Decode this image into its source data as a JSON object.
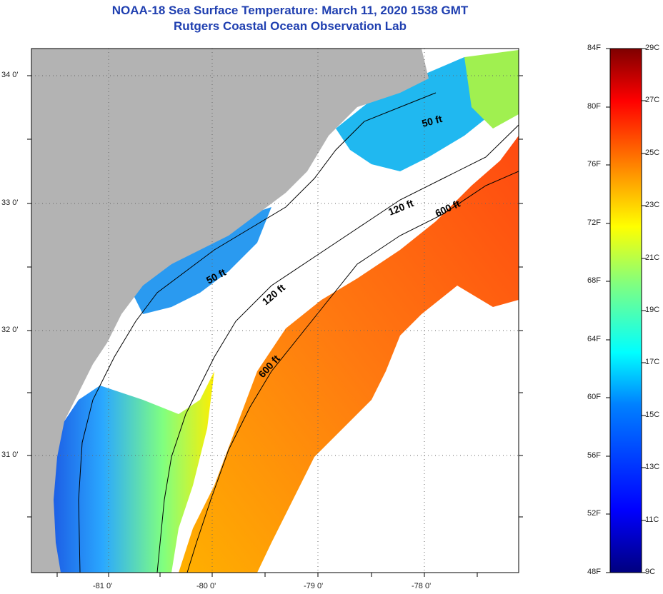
{
  "header": {
    "title": "NOAA-18 Sea Surface Temperature:  March 11, 2020 1538 GMT",
    "subtitle": "Rutgers Coastal Ocean Observation Lab"
  },
  "map": {
    "lat_labels": [
      "34 0'",
      "33 0'",
      "32 0'",
      "31 0'"
    ],
    "lon_labels": [
      "-81 0'",
      "-80 0'",
      "-79 0'",
      "-78 0'"
    ],
    "land_color": "#b3b3b3",
    "cloud_color": "#ffffff",
    "isobaths": [
      {
        "label": "50 ft"
      },
      {
        "label": "50 ft"
      },
      {
        "label": "120 ft"
      },
      {
        "label": "120 ft"
      },
      {
        "label": "600 ft"
      },
      {
        "label": "600 ft"
      }
    ]
  },
  "colorbar": {
    "fahrenheit_labels": [
      "84F",
      "80F",
      "76F",
      "72F",
      "68F",
      "64F",
      "60F",
      "56F",
      "52F",
      "48F"
    ],
    "celsius_labels": [
      "29C",
      "27C",
      "25C",
      "23C",
      "21C",
      "19C",
      "17C",
      "15C",
      "13C",
      "11C",
      "9C"
    ],
    "colors": [
      "#00007f",
      "#0000ff",
      "#0080ff",
      "#00ffff",
      "#80ff80",
      "#ffff00",
      "#ff8000",
      "#ff0000",
      "#7f0000"
    ]
  }
}
